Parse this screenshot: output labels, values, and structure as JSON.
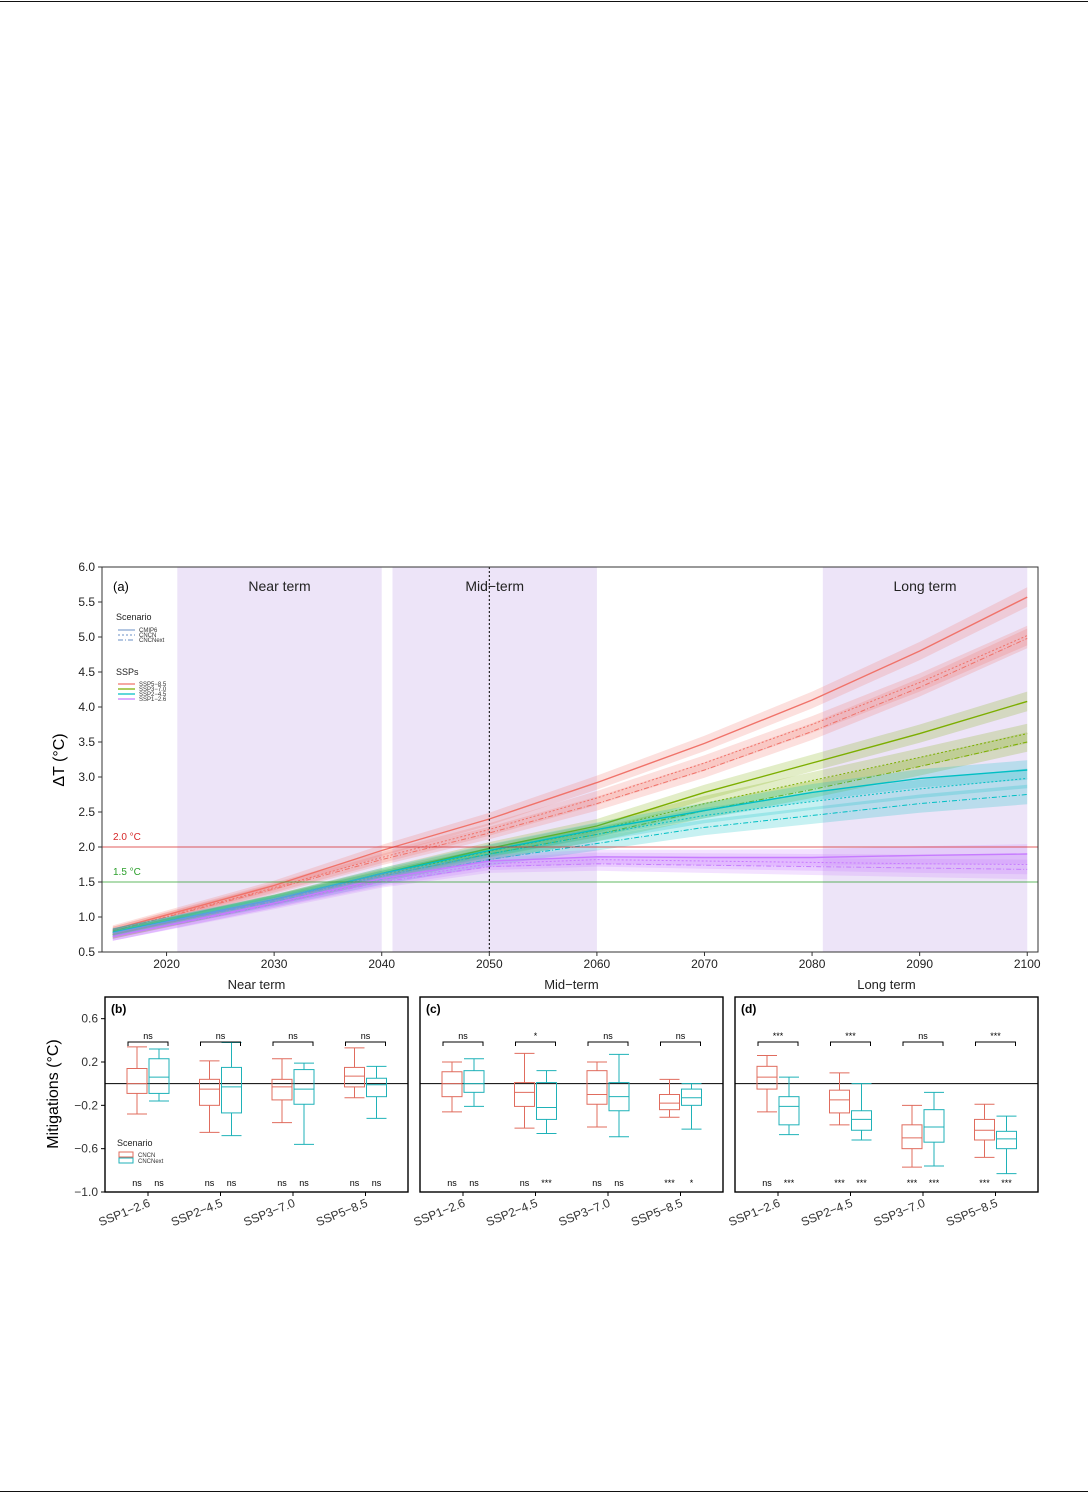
{
  "colors": {
    "ssp585": "#f0736a",
    "ssp370": "#7cae00",
    "ssp245": "#00bfc4",
    "ssp126": "#c77cff",
    "cncn": "#e06c5e",
    "cncnext": "#1fb2b8",
    "band": "#ede4f8",
    "line2": "#d62728",
    "line15": "#2ca02c"
  },
  "chart_data": [
    {
      "type": "line",
      "panel": "(a)",
      "ylabel": "ΔT (°C)",
      "xlim": [
        2014,
        2101
      ],
      "ylim": [
        0.5,
        6.0
      ],
      "xticks": [
        2020,
        2030,
        2040,
        2050,
        2060,
        2070,
        2080,
        2090,
        2100
      ],
      "yticks": [
        "0.5",
        "1.0",
        "1.5",
        "2.0",
        "2.5",
        "3.0",
        "3.5",
        "4.0",
        "4.5",
        "5.0",
        "5.5",
        "6.0"
      ],
      "periods": [
        {
          "label": "Near term",
          "start": 2021,
          "end": 2040
        },
        {
          "label": "Mid−term",
          "start": 2041,
          "end": 2060
        },
        {
          "label": "Long term",
          "start": 2081,
          "end": 2100
        }
      ],
      "vline": 2050,
      "hlines": [
        {
          "y": 2.0,
          "label": "2.0 °C"
        },
        {
          "y": 1.5,
          "label": "1.5 °C"
        }
      ],
      "legend_scenario": {
        "title": "Scenario",
        "items": [
          "CMIP6",
          "CNCN",
          "CNCNext"
        ]
      },
      "legend_ssps": {
        "title": "SSPs",
        "items": [
          "SSP5−8.5",
          "SSP3−7.0",
          "SSP2−4.5",
          "SSP1−2.6"
        ]
      },
      "series": [
        {
          "name": "SSP5−8.5",
          "scenario": "CMIP6",
          "x": [
            2015,
            2030,
            2040,
            2050,
            2060,
            2070,
            2080,
            2090,
            2100
          ],
          "y": [
            0.82,
            1.45,
            1.95,
            2.4,
            2.92,
            3.48,
            4.1,
            4.8,
            5.57
          ]
        },
        {
          "name": "SSP5−8.5",
          "scenario": "CNCN",
          "x": [
            2015,
            2030,
            2040,
            2050,
            2060,
            2070,
            2080,
            2090,
            2100
          ],
          "y": [
            0.8,
            1.42,
            1.85,
            2.25,
            2.7,
            3.2,
            3.75,
            4.35,
            5.02
          ]
        },
        {
          "name": "SSP5−8.5",
          "scenario": "CNCNext",
          "x": [
            2015,
            2030,
            2040,
            2050,
            2060,
            2070,
            2080,
            2090,
            2100
          ],
          "y": [
            0.8,
            1.4,
            1.82,
            2.2,
            2.62,
            3.1,
            3.65,
            4.28,
            4.98
          ]
        },
        {
          "name": "SSP3−7.0",
          "scenario": "CMIP6",
          "x": [
            2015,
            2030,
            2040,
            2050,
            2060,
            2070,
            2080,
            2090,
            2100
          ],
          "y": [
            0.75,
            1.25,
            1.62,
            1.98,
            2.3,
            2.78,
            3.2,
            3.62,
            4.08
          ]
        },
        {
          "name": "SSP3−7.0",
          "scenario": "CNCN",
          "x": [
            2015,
            2030,
            2040,
            2050,
            2060,
            2070,
            2080,
            2090,
            2100
          ],
          "y": [
            0.75,
            1.25,
            1.6,
            1.94,
            2.24,
            2.62,
            2.95,
            3.28,
            3.62
          ]
        },
        {
          "name": "SSP3−7.0",
          "scenario": "CNCNext",
          "x": [
            2015,
            2030,
            2040,
            2050,
            2060,
            2070,
            2080,
            2090,
            2100
          ],
          "y": [
            0.75,
            1.24,
            1.58,
            1.9,
            2.18,
            2.52,
            2.82,
            3.15,
            3.5
          ]
        },
        {
          "name": "SSP2−4.5",
          "scenario": "CMIP6",
          "x": [
            2015,
            2030,
            2040,
            2050,
            2060,
            2070,
            2080,
            2090,
            2100
          ],
          "y": [
            0.78,
            1.25,
            1.62,
            1.95,
            2.25,
            2.52,
            2.78,
            2.98,
            3.1
          ]
        },
        {
          "name": "SSP2−4.5",
          "scenario": "CNCN",
          "x": [
            2015,
            2030,
            2040,
            2050,
            2060,
            2070,
            2080,
            2090,
            2100
          ],
          "y": [
            0.78,
            1.24,
            1.58,
            1.9,
            2.18,
            2.45,
            2.65,
            2.83,
            2.98
          ]
        },
        {
          "name": "SSP2−4.5",
          "scenario": "CNCNext",
          "x": [
            2015,
            2030,
            2040,
            2050,
            2060,
            2070,
            2080,
            2090,
            2100
          ],
          "y": [
            0.78,
            1.22,
            1.54,
            1.82,
            2.05,
            2.28,
            2.45,
            2.62,
            2.75
          ]
        },
        {
          "name": "SSP1−2.6",
          "scenario": "CMIP6",
          "x": [
            2015,
            2030,
            2040,
            2050,
            2060,
            2070,
            2080,
            2090,
            2100
          ],
          "y": [
            0.72,
            1.2,
            1.55,
            1.8,
            1.86,
            1.85,
            1.85,
            1.88,
            1.9
          ]
        },
        {
          "name": "SSP1−2.6",
          "scenario": "CNCN",
          "x": [
            2015,
            2030,
            2040,
            2050,
            2060,
            2070,
            2080,
            2090,
            2100
          ],
          "y": [
            0.72,
            1.2,
            1.52,
            1.76,
            1.82,
            1.8,
            1.78,
            1.76,
            1.75
          ]
        },
        {
          "name": "SSP1−2.6",
          "scenario": "CNCNext",
          "x": [
            2015,
            2030,
            2040,
            2050,
            2060,
            2070,
            2080,
            2090,
            2100
          ],
          "y": [
            0.72,
            1.18,
            1.5,
            1.72,
            1.76,
            1.74,
            1.72,
            1.7,
            1.68
          ]
        }
      ]
    },
    {
      "type": "box",
      "panels": [
        {
          "label": "(b)",
          "title": "Near term"
        },
        {
          "label": "(c)",
          "title": "Mid−term"
        },
        {
          "label": "(d)",
          "title": "Long term"
        }
      ],
      "ylabel": "Mitigations (°C)",
      "ylim": [
        -1.0,
        0.8
      ],
      "yticks": [
        "0.6",
        "0.2",
        "−0.2",
        "−0.6",
        "−1.0"
      ],
      "categories": [
        "SSP1−2.6",
        "SSP2−4.5",
        "SSP3−7.0",
        "SSP5−8.5"
      ],
      "legend": {
        "title": "Scenario",
        "items": [
          "CNCN",
          "CNCNext"
        ]
      },
      "boxes": {
        "(b)": {
          "CNCN": [
            {
              "min": -0.28,
              "q1": -0.09,
              "median": 0.0,
              "q3": 0.14,
              "max": 0.34
            },
            {
              "min": -0.45,
              "q1": -0.2,
              "median": -0.05,
              "q3": 0.04,
              "max": 0.21
            },
            {
              "min": -0.36,
              "q1": -0.15,
              "median": -0.03,
              "q3": 0.04,
              "max": 0.23
            },
            {
              "min": -0.13,
              "q1": -0.03,
              "median": 0.07,
              "q3": 0.15,
              "max": 0.33
            }
          ],
          "CNCNext": [
            {
              "min": -0.16,
              "q1": -0.09,
              "median": 0.06,
              "q3": 0.23,
              "max": 0.32
            },
            {
              "min": -0.48,
              "q1": -0.27,
              "median": -0.03,
              "q3": 0.15,
              "max": 0.38
            },
            {
              "min": -0.56,
              "q1": -0.19,
              "median": -0.05,
              "q3": 0.13,
              "max": 0.19
            },
            {
              "min": -0.32,
              "q1": -0.12,
              "median": -0.01,
              "q3": 0.05,
              "max": 0.16
            }
          ]
        },
        "(c)": {
          "CNCN": [
            {
              "min": -0.26,
              "q1": -0.12,
              "median": 0.0,
              "q3": 0.11,
              "max": 0.2
            },
            {
              "min": -0.41,
              "q1": -0.21,
              "median": -0.08,
              "q3": 0.01,
              "max": 0.28
            },
            {
              "min": -0.4,
              "q1": -0.19,
              "median": -0.1,
              "q3": 0.12,
              "max": 0.2
            },
            {
              "min": -0.31,
              "q1": -0.24,
              "median": -0.18,
              "q3": -0.1,
              "max": 0.04
            }
          ],
          "CNCNext": [
            {
              "min": -0.21,
              "q1": -0.08,
              "median": 0.0,
              "q3": 0.12,
              "max": 0.23
            },
            {
              "min": -0.46,
              "q1": -0.33,
              "median": -0.22,
              "q3": 0.01,
              "max": 0.12
            },
            {
              "min": -0.49,
              "q1": -0.25,
              "median": -0.12,
              "q3": 0.01,
              "max": 0.27
            },
            {
              "min": -0.42,
              "q1": -0.2,
              "median": -0.13,
              "q3": -0.05,
              "max": 0.0
            }
          ]
        },
        "(d)": {
          "CNCN": [
            {
              "min": -0.26,
              "q1": -0.05,
              "median": 0.06,
              "q3": 0.16,
              "max": 0.26
            },
            {
              "min": -0.38,
              "q1": -0.27,
              "median": -0.15,
              "q3": -0.06,
              "max": 0.1
            },
            {
              "min": -0.77,
              "q1": -0.6,
              "median": -0.5,
              "q3": -0.38,
              "max": -0.2
            },
            {
              "min": -0.68,
              "q1": -0.52,
              "median": -0.43,
              "q3": -0.33,
              "max": -0.19
            }
          ],
          "CNCNext": [
            {
              "min": -0.47,
              "q1": -0.38,
              "median": -0.21,
              "q3": -0.12,
              "max": 0.06
            },
            {
              "min": -0.52,
              "q1": -0.43,
              "median": -0.33,
              "q3": -0.25,
              "max": 0.0
            },
            {
              "min": -0.76,
              "q1": -0.54,
              "median": -0.4,
              "q3": -0.24,
              "max": -0.08
            },
            {
              "min": -0.83,
              "q1": -0.6,
              "median": -0.51,
              "q3": -0.44,
              "max": -0.3
            }
          ]
        }
      },
      "significance_top": {
        "(b)": [
          "ns",
          "ns",
          "ns",
          "ns"
        ],
        "(c)": [
          "ns",
          "*",
          "ns",
          "ns"
        ],
        "(d)": [
          "***",
          "***",
          "ns",
          "***"
        ]
      },
      "significance_bottom": {
        "(b)": [
          [
            "ns",
            "ns"
          ],
          [
            "ns",
            "ns"
          ],
          [
            "ns",
            "ns"
          ],
          [
            "ns",
            "ns"
          ]
        ],
        "(c)": [
          [
            "ns",
            "ns"
          ],
          [
            "ns",
            "***"
          ],
          [
            "ns",
            "ns"
          ],
          [
            "***",
            "*"
          ]
        ],
        "(d)": [
          [
            "ns",
            "***"
          ],
          [
            "***",
            "***"
          ],
          [
            "***",
            "***"
          ],
          [
            "***",
            "***"
          ]
        ]
      }
    }
  ]
}
